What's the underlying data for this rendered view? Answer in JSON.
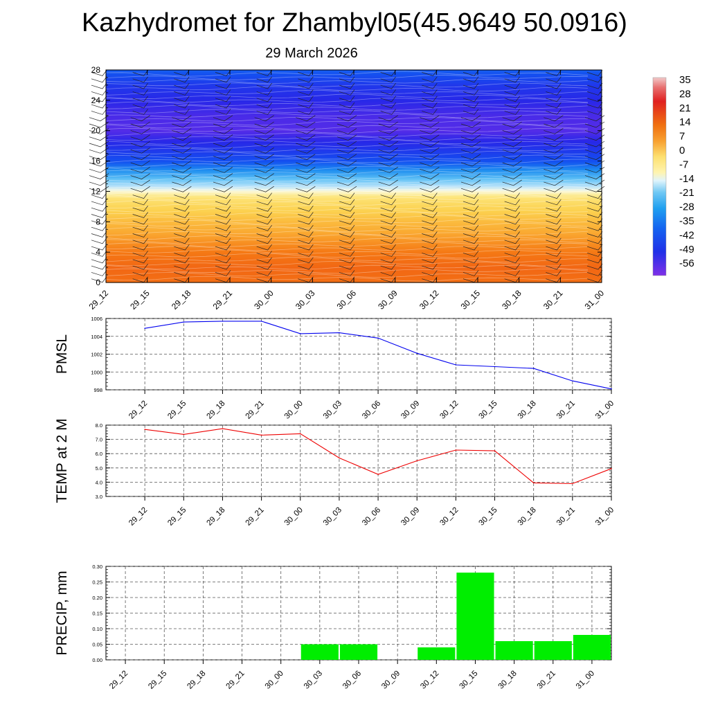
{
  "title": "Kazhydromet for Zhambyl05(45.9649 50.0916)",
  "subtitle": "29 March 2026",
  "time_labels": [
    "29_12",
    "29_15",
    "29_18",
    "29_21",
    "30_00",
    "30_03",
    "30_06",
    "30_09",
    "30_12",
    "30_15",
    "30_18",
    "30_21",
    "31_00"
  ],
  "colors": {
    "pmsl_line": "#0000ee",
    "temp_line": "#ee0000",
    "precip_bar": "#00ee00",
    "grid": "#555555"
  },
  "chart_data": [
    {
      "type": "heatmap",
      "name": "vertical-cross-section",
      "description_keys": "height levels vs time with temperature shading and wind barbs",
      "x": [
        "29_12",
        "29_15",
        "29_18",
        "29_21",
        "30_00",
        "30_03",
        "30_06",
        "30_09",
        "30_12",
        "30_15",
        "30_18",
        "30_21",
        "31_00"
      ],
      "ylim": [
        0,
        28
      ],
      "yticks": [
        0,
        4,
        8,
        12,
        16,
        20,
        24,
        28
      ],
      "profile_levels": [
        0,
        2,
        4,
        6,
        8,
        10,
        11,
        12,
        13,
        14,
        15,
        16,
        18,
        20,
        22,
        24,
        26,
        28
      ],
      "profile_values": [
        7,
        8,
        6,
        3,
        0,
        -4,
        -7,
        -12,
        -20,
        -28,
        -35,
        -42,
        -50,
        -56,
        -55,
        -52,
        -48,
        -40
      ],
      "colorbar": {
        "labels": [
          "35",
          "28",
          "21",
          "14",
          "7",
          "0",
          "-7",
          "-14",
          "-21",
          "-28",
          "-35",
          "-42",
          "-49",
          "-56"
        ],
        "range": [
          -60,
          38
        ]
      }
    },
    {
      "type": "line",
      "name": "pmsl",
      "ylabel": "PMSL",
      "x": [
        "29_12",
        "29_15",
        "29_18",
        "29_21",
        "30_00",
        "30_03",
        "30_06",
        "30_09",
        "30_12",
        "30_15",
        "30_18",
        "30_21",
        "31_00"
      ],
      "values": [
        1004.9,
        1005.6,
        1005.7,
        1005.7,
        1004.3,
        1004.4,
        1003.8,
        1002.1,
        1000.8,
        1000.6,
        1000.4,
        999.0,
        998.1
      ],
      "ylim": [
        998,
        1006
      ],
      "yticks": [
        998,
        1000,
        1002,
        1004,
        1006
      ],
      "ytick_labels": [
        "998",
        "1000",
        "1002",
        "1004",
        "1006"
      ]
    },
    {
      "type": "line",
      "name": "temp-2m",
      "ylabel": "TEMP at 2 M",
      "x": [
        "29_12",
        "29_15",
        "29_18",
        "29_21",
        "30_00",
        "30_03",
        "30_06",
        "30_09",
        "30_12",
        "30_15",
        "30_18",
        "30_21",
        "31_00"
      ],
      "values": [
        7.7,
        7.35,
        7.75,
        7.3,
        7.4,
        5.7,
        4.55,
        5.5,
        6.25,
        6.2,
        3.95,
        3.9,
        4.95
      ],
      "ylim": [
        3.0,
        8.0
      ],
      "yticks": [
        3,
        4,
        5,
        6,
        7,
        8
      ],
      "ytick_labels": [
        "3.0",
        "4.0",
        "5.0",
        "6.0",
        "7.0",
        "8.0"
      ]
    },
    {
      "type": "bar",
      "name": "precipitation",
      "ylabel": "PRECIP, mm",
      "categories": [
        "29_12",
        "29_15",
        "29_18",
        "29_21",
        "30_00",
        "30_03",
        "30_06",
        "30_09",
        "30_12",
        "30_15",
        "30_18",
        "30_21",
        "31_00"
      ],
      "values": [
        0,
        0,
        0,
        0,
        0,
        0.05,
        0.05,
        0,
        0.04,
        0.28,
        0.06,
        0.06,
        0.08
      ],
      "ylim": [
        0,
        0.3
      ],
      "yticks": [
        0,
        0.05,
        0.1,
        0.15,
        0.2,
        0.25,
        0.3
      ],
      "ytick_labels": [
        "0.00",
        "0.05",
        "0.10",
        "0.15",
        "0.20",
        "0.25",
        "0.30"
      ]
    }
  ]
}
